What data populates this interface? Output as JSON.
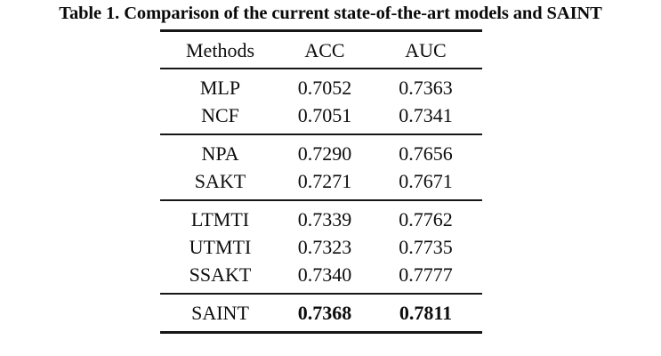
{
  "caption": {
    "text": "Table 1. Comparison of the current state-of-the-art models and SAINT"
  },
  "table": {
    "columns": [
      "Methods",
      "ACC",
      "AUC"
    ],
    "groups": [
      {
        "rows": [
          {
            "method": "MLP",
            "acc": "0.7052",
            "auc": "0.7363"
          },
          {
            "method": "NCF",
            "acc": "0.7051",
            "auc": "0.7341"
          }
        ]
      },
      {
        "rows": [
          {
            "method": "NPA",
            "acc": "0.7290",
            "auc": "0.7656"
          },
          {
            "method": "SAKT",
            "acc": "0.7271",
            "auc": "0.7671"
          }
        ]
      },
      {
        "rows": [
          {
            "method": "LTMTI",
            "acc": "0.7339",
            "auc": "0.7762"
          },
          {
            "method": "UTMTI",
            "acc": "0.7323",
            "auc": "0.7735"
          },
          {
            "method": "SSAKT",
            "acc": "0.7340",
            "auc": "0.7777"
          }
        ]
      },
      {
        "rows": [
          {
            "method": "SAINT",
            "acc": "0.7368",
            "auc": "0.7811"
          }
        ]
      }
    ]
  },
  "colors": {
    "background": "#ffffff",
    "text": "#0d0d0d",
    "rule": "#161616"
  },
  "chart_data": {
    "type": "table",
    "title": "Table 1. Comparison of the current state-of-the-art models and SAINT",
    "columns": [
      "Methods",
      "ACC",
      "AUC"
    ],
    "rows": [
      [
        "MLP",
        0.7052,
        0.7363
      ],
      [
        "NCF",
        0.7051,
        0.7341
      ],
      [
        "NPA",
        0.729,
        0.7656
      ],
      [
        "SAKT",
        0.7271,
        0.7671
      ],
      [
        "LTMTI",
        0.7339,
        0.7762
      ],
      [
        "UTMTI",
        0.7323,
        0.7735
      ],
      [
        "SSAKT",
        0.734,
        0.7777
      ],
      [
        "SAINT",
        0.7368,
        0.7811
      ]
    ],
    "group_breaks_after_row_index": [
      1,
      3,
      6
    ],
    "bold_row": "SAINT"
  }
}
